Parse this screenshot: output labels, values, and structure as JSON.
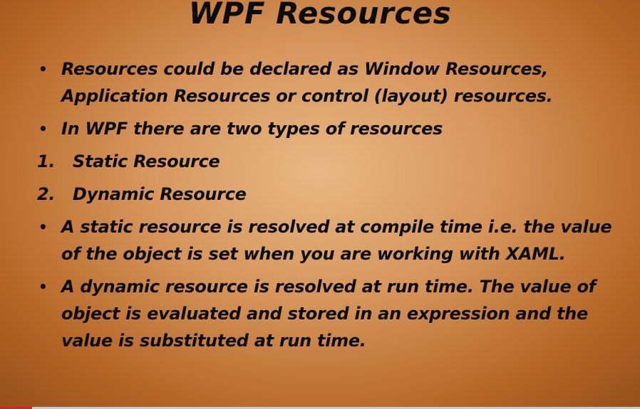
{
  "slide": {
    "title": "WPF Resources",
    "items": [
      {
        "marker": "•",
        "text": "Resources could be declared as Window Resources, Application Resources or control (layout) resources."
      },
      {
        "marker": "•",
        "text": "In WPF there are two types of resources"
      },
      {
        "marker": "1.",
        "text": "Static Resource"
      },
      {
        "marker": "2.",
        "text": "Dynamic Resource"
      },
      {
        "marker": "•",
        "text": "A static resource is resolved at compile time i.e. the value of the object is set when you are working with XAML."
      },
      {
        "marker": "•",
        "text": "A dynamic resource is resolved at run time. The value of object is evaluated and stored in an expression and the value is substituted at run time."
      }
    ]
  },
  "player": {
    "progress_fraction": 0.05,
    "progress_color": "#e02020",
    "track_color": "#c9c9c9"
  }
}
